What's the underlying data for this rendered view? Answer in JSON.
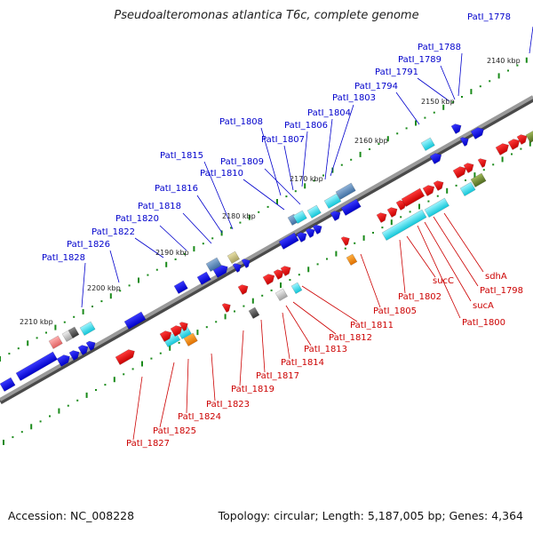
{
  "title": "Pseudoalteromonas atlantica T6c, complete genome",
  "footer": {
    "accession": "Accession: NC_008228",
    "summary": "Topology: circular; Length: 5,187,005 bp; Genes: 4,364"
  },
  "colors": {
    "forward_gene": "#0000ee",
    "reverse_gene": "#ee0000",
    "forward_label": "#0000cc",
    "reverse_label": "#cc0000",
    "tick": "#1a8a1a",
    "backbone": "#7a7a7a"
  },
  "kbp_labels": [
    "2140 kbp",
    "2150 kbp",
    "2160 kbp",
    "2170 kbp",
    "2180 kbp",
    "2190 kbp",
    "2200 kbp",
    "2210 kbp"
  ],
  "forward_genes": [
    "PatI_1778",
    "PatI_1788",
    "PatI_1789",
    "PatI_1791",
    "PatI_1794",
    "PatI_1803",
    "PatI_1804",
    "PatI_1806",
    "PatI_1807",
    "PatI_1808",
    "PatI_1809",
    "PatI_1810",
    "PatI_1815",
    "PatI_1816",
    "PatI_1818",
    "PatI_1820",
    "PatI_1822",
    "PatI_1826",
    "PatI_1828"
  ],
  "reverse_genes": [
    "sdhA",
    "PatI_1798",
    "sucA",
    "PatI_1800",
    "sucC",
    "PatI_1802",
    "PatI_1805",
    "PatI_1811",
    "PatI_1812",
    "PatI_1813",
    "PatI_1814",
    "PatI_1817",
    "PatI_1819",
    "PatI_1823",
    "PatI_1824",
    "PatI_1825",
    "PatI_1827"
  ]
}
